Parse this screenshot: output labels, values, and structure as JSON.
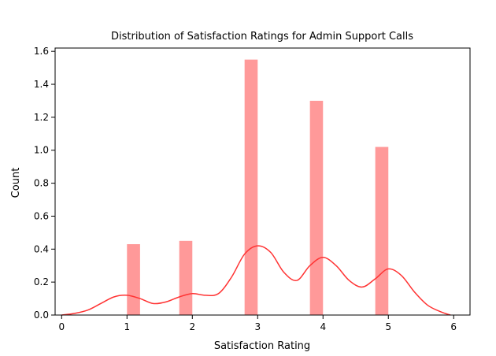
{
  "chart_data": {
    "type": "bar",
    "title": "Distribution of Satisfaction Ratings for Admin Support Calls",
    "xlabel": "Satisfaction Rating",
    "ylabel": "Count",
    "xlim": [
      -0.1,
      6.25
    ],
    "ylim": [
      0,
      1.62
    ],
    "xticks": [
      0,
      1,
      2,
      3,
      4,
      5,
      6
    ],
    "xtick_labels": [
      "0",
      "1",
      "2",
      "3",
      "4",
      "5",
      "6"
    ],
    "yticks": [
      0.0,
      0.2,
      0.4,
      0.6,
      0.8,
      1.0,
      1.2,
      1.4,
      1.6
    ],
    "ytick_labels": [
      "0.0",
      "0.2",
      "0.4",
      "0.6",
      "0.8",
      "1.0",
      "1.2",
      "1.4",
      "1.6"
    ],
    "bars": {
      "bin_width": 0.2,
      "bin_starts": [
        1.0,
        1.8,
        2.8,
        3.8,
        4.8
      ],
      "values": [
        0.43,
        0.45,
        1.55,
        1.3,
        1.02
      ],
      "color": "#ff9999"
    },
    "kde": {
      "color": "#ff3333",
      "x": [
        0.0,
        0.2,
        0.4,
        0.6,
        0.8,
        1.0,
        1.2,
        1.4,
        1.6,
        1.8,
        2.0,
        2.2,
        2.4,
        2.6,
        2.8,
        3.0,
        3.2,
        3.4,
        3.6,
        3.8,
        4.0,
        4.2,
        4.4,
        4.6,
        4.8,
        5.0,
        5.2,
        5.4,
        5.6,
        5.8,
        5.95
      ],
      "y": [
        0.0,
        0.01,
        0.03,
        0.07,
        0.11,
        0.12,
        0.1,
        0.07,
        0.08,
        0.11,
        0.13,
        0.12,
        0.13,
        0.23,
        0.37,
        0.42,
        0.38,
        0.26,
        0.21,
        0.3,
        0.35,
        0.3,
        0.21,
        0.17,
        0.22,
        0.28,
        0.24,
        0.14,
        0.06,
        0.02,
        0.0
      ]
    },
    "grid": false,
    "legend": "none"
  }
}
